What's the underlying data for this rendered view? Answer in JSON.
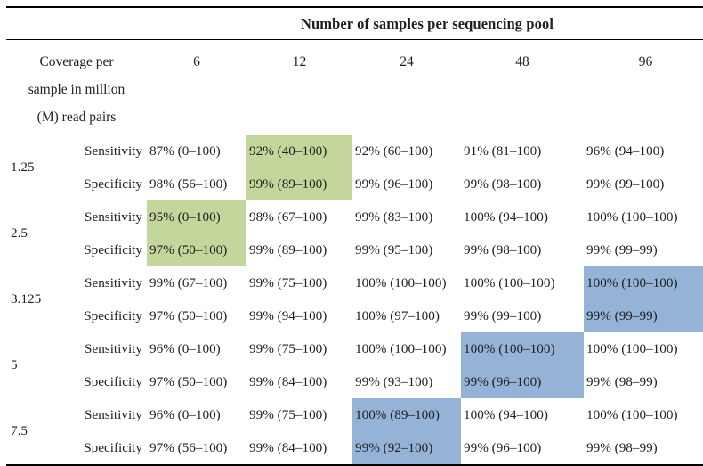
{
  "table": {
    "top_header": "Number of samples per sequencing pool",
    "row_header_lines": [
      "Coverage per",
      "sample in million",
      "(M) read pairs"
    ],
    "columns": [
      "6",
      "12",
      "24",
      "48",
      "96"
    ],
    "metric_labels": [
      "Sensitivity",
      "Specificity"
    ],
    "colors": {
      "green": "#c3d69b",
      "blue": "#95b3d7"
    },
    "groups": [
      {
        "coverage": "1.25",
        "sensitivity": [
          "87% (0–100)",
          "92% (40–100)",
          "92% (60–100)",
          "91% (81–100)",
          "96% (94–100)"
        ],
        "specificity": [
          "98% (56–100)",
          "99% (89–100)",
          "99% (96–100)",
          "99% (98–100)",
          "99% (99–100)"
        ],
        "highlight": {
          "col": 1,
          "color": "green"
        }
      },
      {
        "coverage": "2.5",
        "sensitivity": [
          "95% (0–100)",
          "98% (67–100)",
          "99% (83–100)",
          "100% (94–100)",
          "100% (100–100)"
        ],
        "specificity": [
          "97% (50–100)",
          "99% (89–100)",
          "99% (95–100)",
          "99% (98–100)",
          "99% (99–99)"
        ],
        "highlight": {
          "col": 0,
          "color": "green"
        }
      },
      {
        "coverage": "3.125",
        "sensitivity": [
          "99% (67–100)",
          "99% (75–100)",
          "100% (100–100)",
          "100% (100–100)",
          "100% (100–100)"
        ],
        "specificity": [
          "97% (50–100)",
          "99% (94–100)",
          "100% (97–100)",
          "99% (99–100)",
          "99% (99–99)"
        ],
        "highlight": {
          "col": 4,
          "color": "blue"
        }
      },
      {
        "coverage": "5",
        "sensitivity": [
          "96% (0–100)",
          "99% (75–100)",
          "100% (100–100)",
          "100% (100–100)",
          "100% (100–100)"
        ],
        "specificity": [
          "97% (50–100)",
          "99% (84–100)",
          "99% (93–100)",
          "99% (96–100)",
          "99% (98–99)"
        ],
        "highlight": {
          "col": 3,
          "color": "blue"
        }
      },
      {
        "coverage": "7.5",
        "sensitivity": [
          "96% (0–100)",
          "99% (75–100)",
          "100% (89–100)",
          "100% (94–100)",
          "100% (100–100)"
        ],
        "specificity": [
          "97% (56–100)",
          "99% (84–100)",
          "99% (92–100)",
          "99% (96–100)",
          "99% (98–99)"
        ],
        "highlight": {
          "col": 2,
          "color": "blue"
        }
      }
    ]
  }
}
